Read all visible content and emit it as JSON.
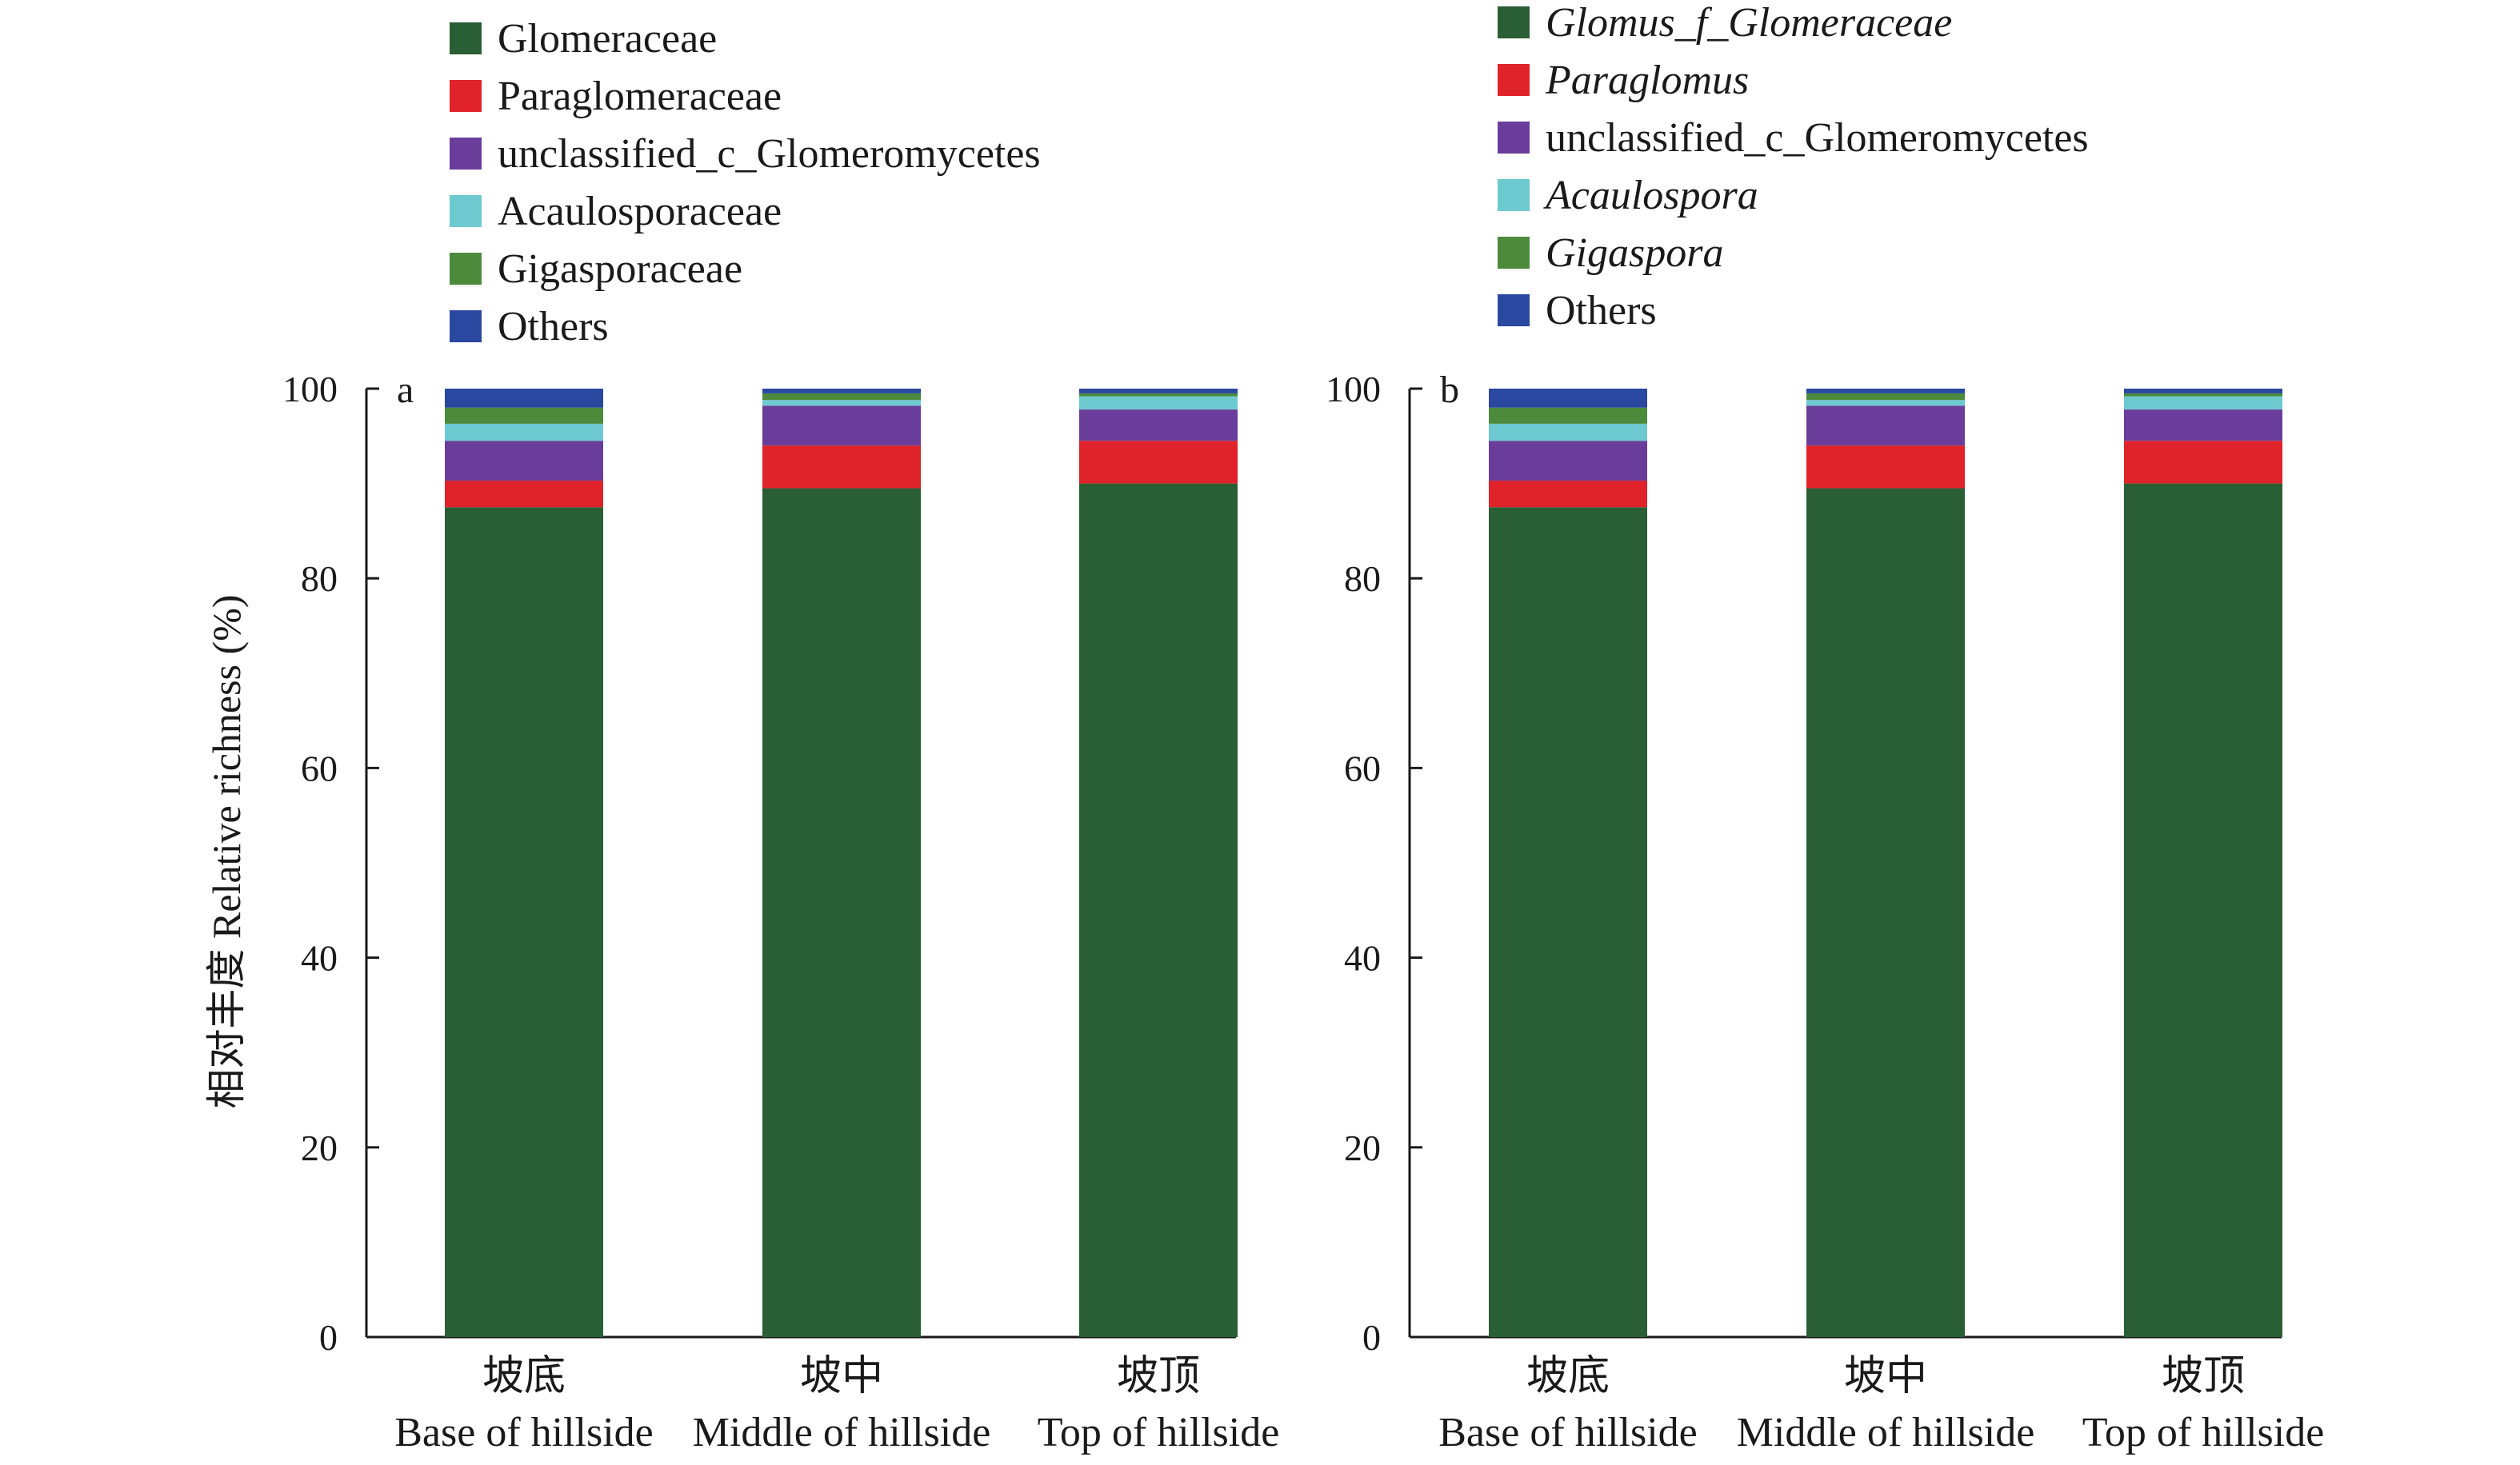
{
  "figure": {
    "ylabel": "相对丰度 Relative richness (%)"
  },
  "chart_data": [
    {
      "type": "bar",
      "stacked": true,
      "panel": "a",
      "categories": [
        {
          "cn": "坡底",
          "en": "Base of hillside"
        },
        {
          "cn": "坡中",
          "en": "Middle of hillside"
        },
        {
          "cn": "坡顶",
          "en": "Top of hillside"
        }
      ],
      "ylim": [
        0,
        100
      ],
      "yticks": [
        0,
        20,
        40,
        60,
        80,
        100
      ],
      "grid": false,
      "legend_position": "top",
      "series": [
        {
          "name": "Glomeraceae",
          "italic": false,
          "color": "#2a5e34",
          "values": [
            87.5,
            89.5,
            90.0
          ]
        },
        {
          "name": "Paraglomeraceae",
          "italic": false,
          "color": "#e0232a",
          "values": [
            2.8,
            4.5,
            4.5
          ]
        },
        {
          "name": "unclassified_c_Glomeromycetes",
          "italic": false,
          "color": "#6a3d9a",
          "values": [
            4.2,
            4.2,
            3.3
          ]
        },
        {
          "name": "Acaulosporaceae",
          "italic": false,
          "color": "#6ccad0",
          "values": [
            1.8,
            0.6,
            1.4
          ]
        },
        {
          "name": "Gigasporaceae",
          "italic": false,
          "color": "#4d8a3c",
          "values": [
            1.7,
            0.7,
            0.3
          ]
        },
        {
          "name": "Others",
          "italic": false,
          "color": "#2a48a0",
          "values": [
            2.0,
            0.5,
            0.5
          ]
        }
      ]
    },
    {
      "type": "bar",
      "stacked": true,
      "panel": "b",
      "categories": [
        {
          "cn": "坡底",
          "en": "Base of hillside"
        },
        {
          "cn": "坡中",
          "en": "Middle of hillside"
        },
        {
          "cn": "坡顶",
          "en": "Top of hillside"
        }
      ],
      "ylim": [
        0,
        100
      ],
      "yticks": [
        0,
        20,
        40,
        60,
        80,
        100
      ],
      "grid": false,
      "legend_position": "top",
      "series": [
        {
          "name": "Glomus_f_Glomeraceae",
          "italic": true,
          "color": "#2a5e34",
          "values": [
            87.5,
            89.5,
            90.0
          ]
        },
        {
          "name": "Paraglomus",
          "italic": true,
          "color": "#e0232a",
          "values": [
            2.8,
            4.5,
            4.5
          ]
        },
        {
          "name": "unclassified_c_Glomeromycetes",
          "italic": false,
          "color": "#6a3d9a",
          "values": [
            4.2,
            4.2,
            3.3
          ]
        },
        {
          "name": "Acaulospora",
          "italic": true,
          "color": "#6ccad0",
          "values": [
            1.8,
            0.6,
            1.4
          ]
        },
        {
          "name": "Gigaspora",
          "italic": true,
          "color": "#4d8a3c",
          "values": [
            1.7,
            0.7,
            0.3
          ]
        },
        {
          "name": "Others",
          "italic": false,
          "color": "#2a48a0",
          "values": [
            2.0,
            0.5,
            0.5
          ]
        }
      ]
    }
  ]
}
